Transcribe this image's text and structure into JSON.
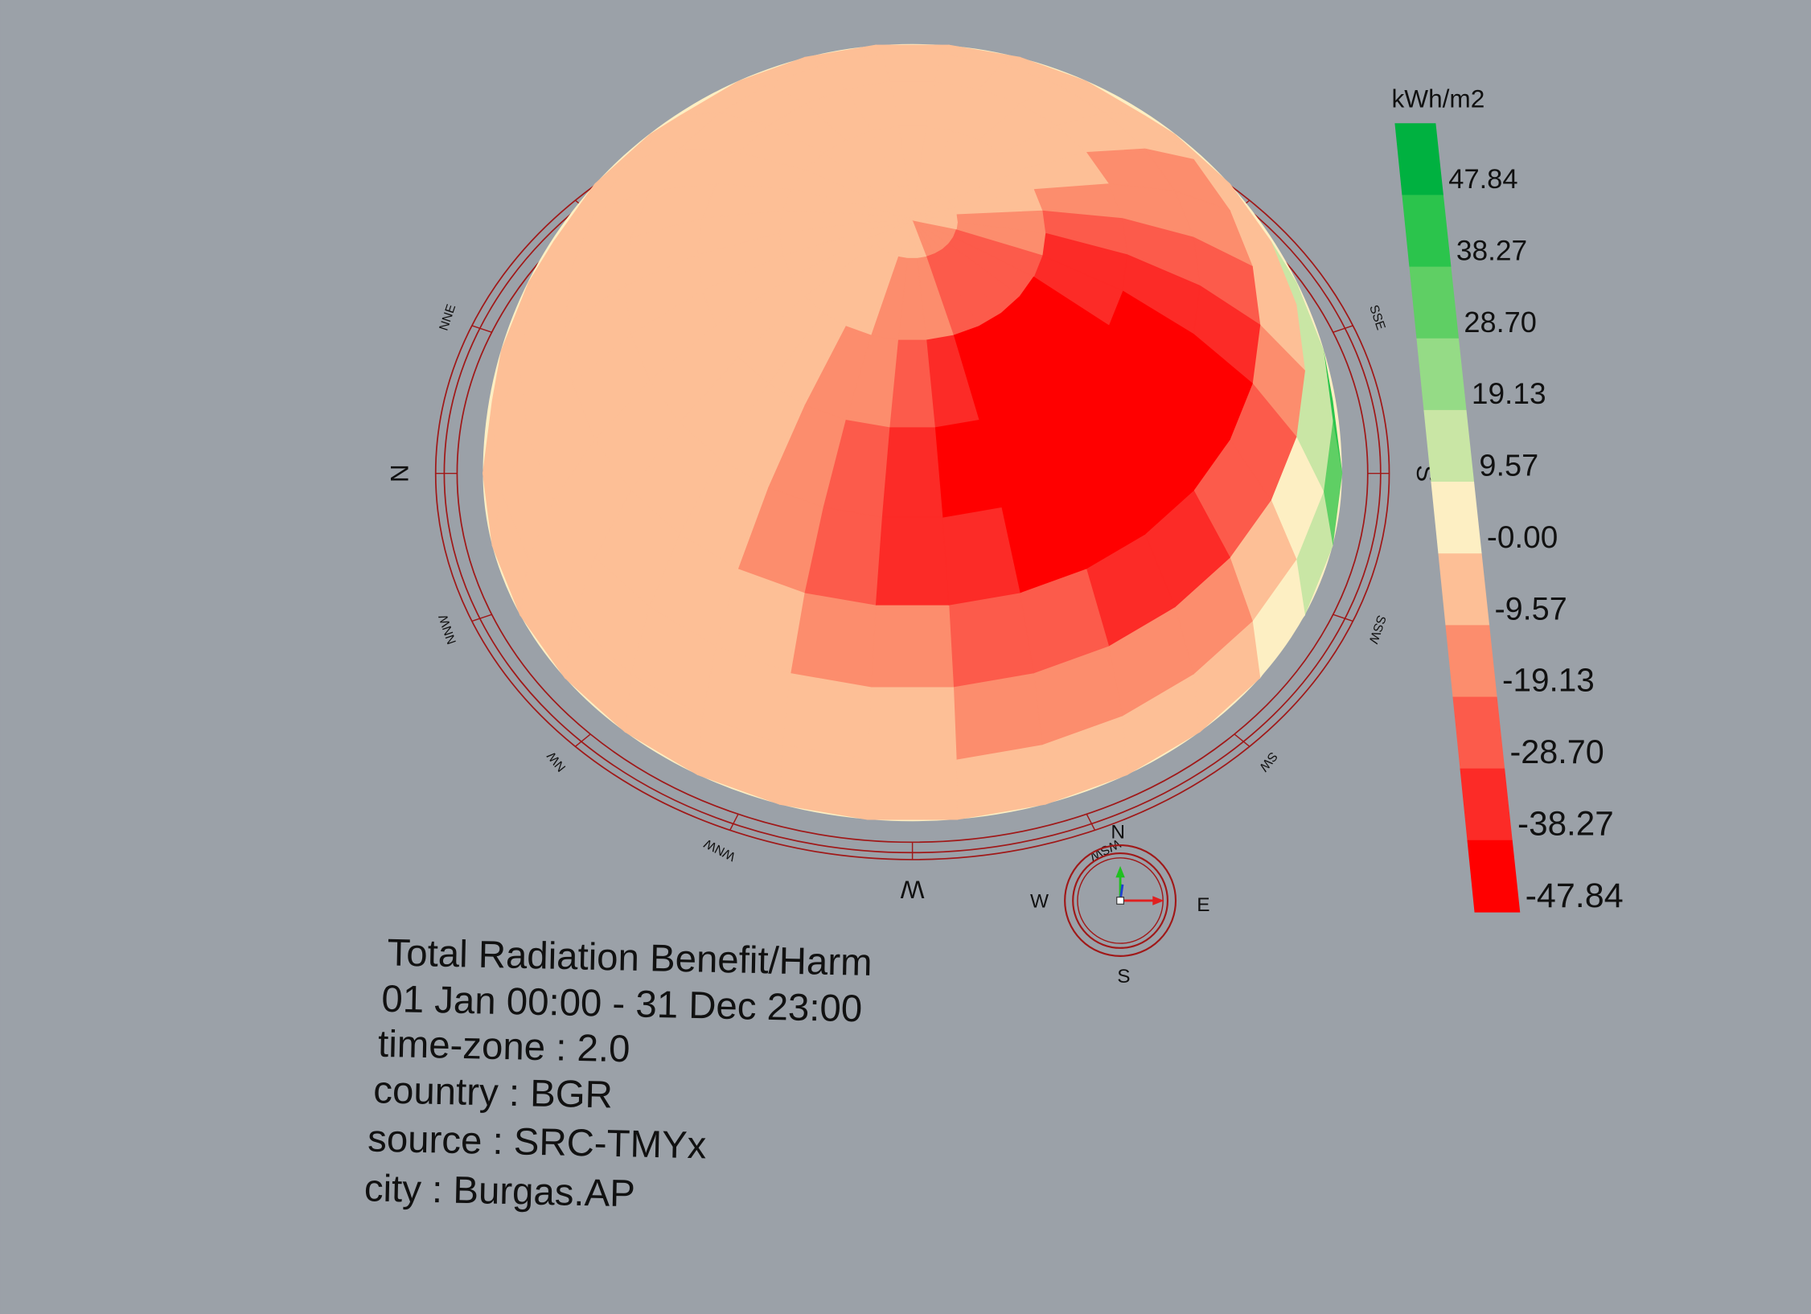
{
  "legend": {
    "title": "kWh/m2",
    "labels": [
      "47.84",
      "38.27",
      "28.70",
      "19.13",
      "9.57",
      "-0.00",
      "-9.57",
      "-19.13",
      "-28.70",
      "-38.27",
      "-47.84"
    ]
  },
  "compass_labels": [
    "NNE",
    "N",
    "NNW",
    "NW",
    "WNW",
    "W",
    "WSW",
    "SW",
    "SSW",
    "S",
    "SSE"
  ],
  "compass_widget": {
    "north": "N",
    "south": "S",
    "west": "W",
    "east": "E"
  },
  "info": [
    "Total Radiation Benefit/Harm",
    "01 Jan 00:00 - 31 Dec 23:00",
    "time-zone : 2.0",
    "country : BGR",
    "source : SRC-TMYx",
    "city : Burgas.AP"
  ]
}
